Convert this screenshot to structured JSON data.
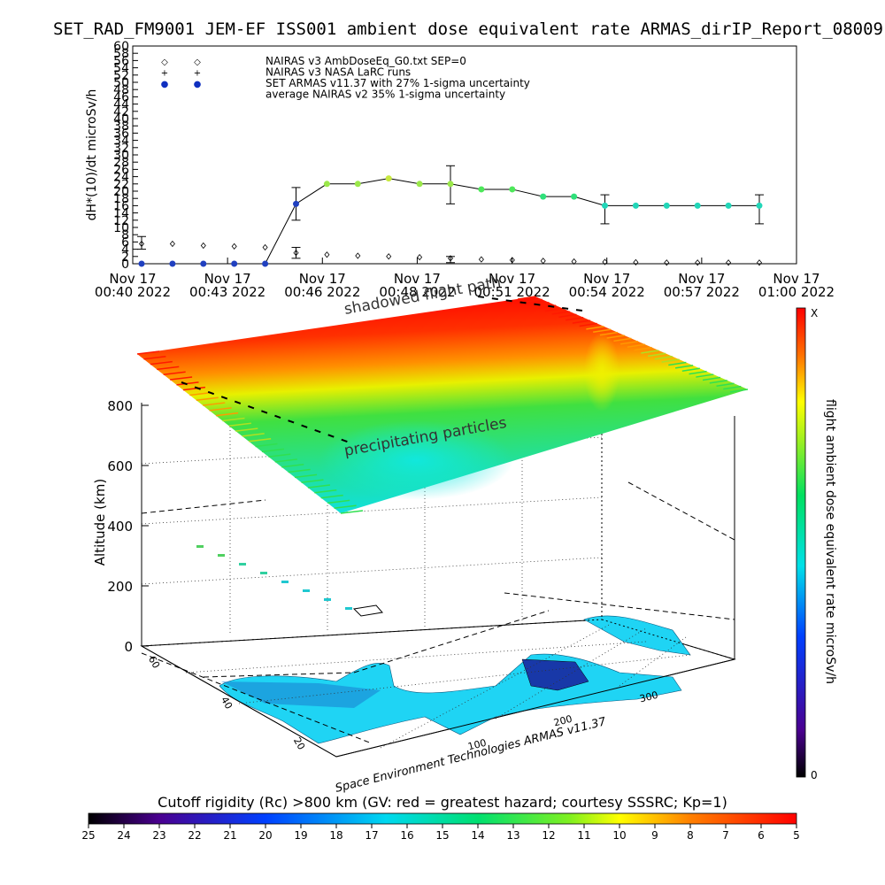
{
  "title": "SET_RAD_FM9001  JEM-EF ISS001 ambient dose equivalent rate ARMAS_dirIP_Report_08009",
  "chart_data": [
    {
      "type": "line",
      "ylabel": "dH*(10)/dt microSv/h",
      "ylim": [
        0,
        60
      ],
      "yticks": [
        "0",
        "2",
        "4",
        "6",
        "8",
        "10",
        "12",
        "14",
        "16",
        "18",
        "20",
        "22",
        "24",
        "26",
        "28",
        "30",
        "32",
        "34",
        "36",
        "38",
        "40",
        "42",
        "44",
        "46",
        "48",
        "50",
        "52",
        "54",
        "56",
        "58",
        "60"
      ],
      "xticks": [
        {
          "line1": "Nov 17",
          "line2": "00:40 2022"
        },
        {
          "line1": "Nov 17",
          "line2": "00:43 2022"
        },
        {
          "line1": "Nov 17",
          "line2": "00:46 2022"
        },
        {
          "line1": "Nov 17",
          "line2": "00:48 2022"
        },
        {
          "line1": "Nov 17",
          "line2": "00:51 2022"
        },
        {
          "line1": "Nov 17",
          "line2": "00:54 2022"
        },
        {
          "line1": "Nov 17",
          "line2": "00:57 2022"
        },
        {
          "line1": "Nov 17",
          "line2": "01:00 2022"
        }
      ],
      "legend": [
        {
          "symbol": "◇",
          "label": "NAIRAS v3 AmbDoseEq_G0.txt SEP=0"
        },
        {
          "symbol": "+",
          "label": "NAIRAS v3 NASA LaRC runs"
        },
        {
          "symbol": "●",
          "label": "SET ARMAS v11.37 with 27% 1-sigma uncertainty"
        },
        {
          "symbol": "",
          "label": "average NAIRAS v2 35% 1-sigma uncertainty"
        }
      ],
      "series": [
        {
          "name": "SET ARMAS v11.37",
          "x": [
            0,
            1,
            2,
            3,
            4,
            5,
            6,
            7,
            8,
            9,
            10,
            11,
            12,
            13,
            14,
            15,
            16,
            17,
            18,
            19,
            20
          ],
          "y": [
            0,
            0,
            0,
            0,
            0,
            16.5,
            22,
            22,
            23.5,
            22,
            22,
            20.5,
            20.5,
            18.5,
            18.5,
            16,
            16,
            16,
            16,
            16,
            16
          ],
          "colors": [
            "#2040c0",
            "#2040c0",
            "#2040c0",
            "#2040c0",
            "#2040c0",
            "#2040c0",
            "#9be84a",
            "#9be84a",
            "#c8e840",
            "#9be84a",
            "#9be84a",
            "#4de85a",
            "#4de85a",
            "#2fe07a",
            "#2fe07a",
            "#22d6b8",
            "#22d6b8",
            "#22d6b8",
            "#22d6b8",
            "#22d6b8",
            "#22d6b8"
          ]
        },
        {
          "name": "NAIRAS v3 AmbDoseEq_G0.txt",
          "x": [
            0,
            1,
            2,
            3,
            4,
            5,
            6,
            7,
            8,
            9,
            10,
            11,
            12,
            13,
            14,
            15,
            16,
            17,
            18,
            19,
            20
          ],
          "y": [
            5.5,
            5.5,
            5,
            4.8,
            4.5,
            3,
            2.5,
            2.2,
            2,
            1.8,
            1.5,
            1.2,
            1,
            0.8,
            0.6,
            0.5,
            0.4,
            0.3,
            0.3,
            0.3,
            0.3
          ]
        }
      ],
      "error_bars": [
        {
          "x": 0,
          "low": 4,
          "high": 7.5
        },
        {
          "x": 5,
          "low": 12,
          "high": 21
        },
        {
          "x": 10,
          "low": 16.5,
          "high": 27
        },
        {
          "x": 15,
          "low": 11,
          "high": 19
        },
        {
          "x": 20,
          "low": 11,
          "high": 19
        },
        {
          "x": 5,
          "low": 1.5,
          "high": 4.5
        },
        {
          "x": 10,
          "low": 0.3,
          "high": 2
        }
      ]
    },
    {
      "type": "3d-surface",
      "zlabel": "Altitude (km)",
      "zticks": [
        "0",
        "200",
        "400",
        "600",
        "800"
      ],
      "xticks": [
        "100",
        "200",
        "300"
      ],
      "yticks": [
        "20",
        "40",
        "60"
      ],
      "colorbar_label": "flight ambient dose equivalent rate microSv/h",
      "colorbar_top": "X",
      "colorbar_bottom": "0",
      "annotations": [
        "precipitating particles",
        "shadowed flight path"
      ],
      "credit": "Space Environment Technologies ARMAS v11.37"
    },
    {
      "type": "colorbar",
      "title": "Cutoff rigidity (Rc) >800 km (GV: red = greatest hazard; courtesy SSSRC; Kp=1)",
      "ticks": [
        "25",
        "24",
        "23",
        "22",
        "21",
        "20",
        "19",
        "18",
        "17",
        "16",
        "15",
        "14",
        "13",
        "12",
        "11",
        "10",
        "9",
        "8",
        "7",
        "6",
        "5"
      ]
    }
  ]
}
